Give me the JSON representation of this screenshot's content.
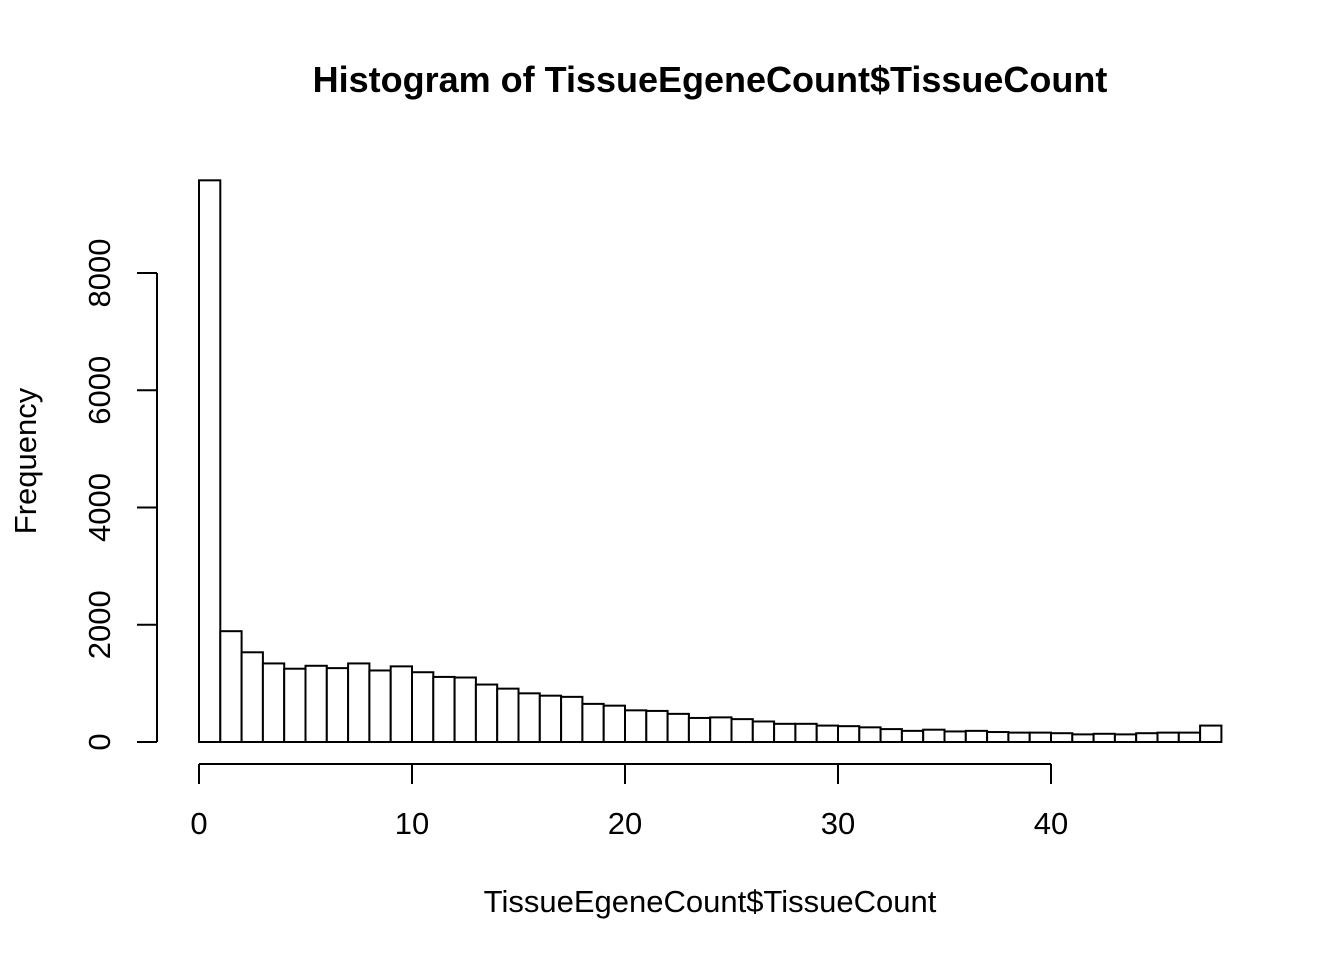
{
  "chart_data": {
    "type": "bar",
    "title": "Histogram of TissueEgeneCount$TissueCount",
    "xlabel": "TissueEgeneCount$TissueCount",
    "ylabel": "Frequency",
    "bin_width": 1,
    "x_start": 0,
    "values": [
      9580,
      1890,
      1530,
      1340,
      1250,
      1300,
      1260,
      1340,
      1220,
      1290,
      1190,
      1110,
      1100,
      980,
      910,
      830,
      790,
      770,
      650,
      620,
      540,
      530,
      480,
      410,
      420,
      390,
      350,
      310,
      310,
      280,
      270,
      250,
      220,
      190,
      210,
      180,
      190,
      170,
      160,
      160,
      150,
      130,
      140,
      130,
      150,
      160,
      160,
      280
    ],
    "xlim": [
      0,
      48
    ],
    "ylim": [
      0,
      9580
    ],
    "xticks": [
      0,
      10,
      20,
      30,
      40
    ],
    "xtick_labels": [
      "0",
      "10",
      "20",
      "30",
      "40"
    ],
    "yticks": [
      0,
      2000,
      4000,
      6000,
      8000
    ],
    "ytick_labels": [
      "0",
      "2000",
      "4000",
      "6000",
      "8000"
    ],
    "grid": false,
    "legend": "none"
  }
}
